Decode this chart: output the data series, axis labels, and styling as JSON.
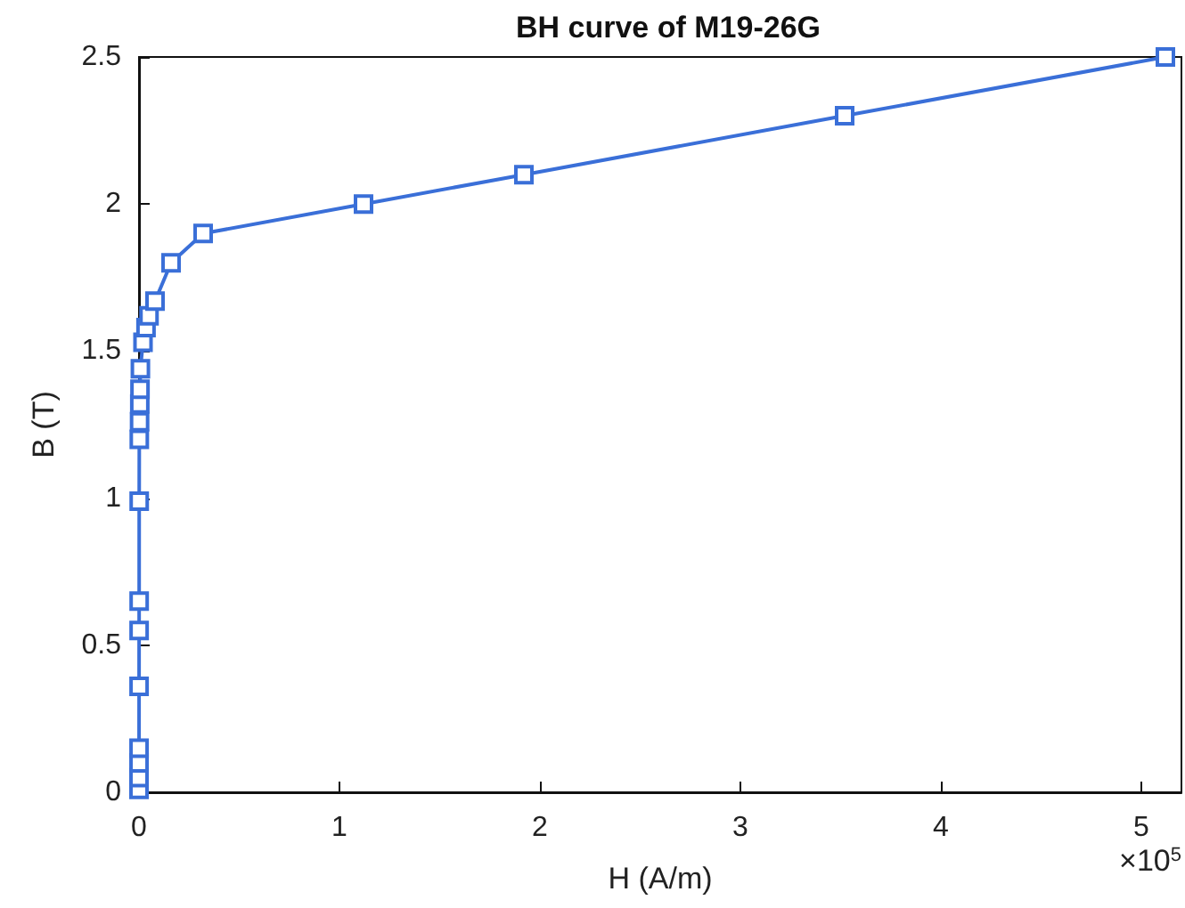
{
  "chart_data": {
    "type": "line",
    "title": "BH curve of M19-26G",
    "xlabel": "H (A/m)",
    "ylabel": "B (T)",
    "annotations": [
      "×10$^{5}$"
    ],
    "x": [
      0,
      0.0001,
      0.0002,
      0.0003,
      0.0004,
      0.0006,
      0.0008,
      0.001,
      0.0015,
      0.003,
      0.004,
      0.005,
      0.007,
      0.02,
      0.035,
      0.05,
      0.08,
      0.16,
      0.32,
      1.12,
      1.92,
      3.52,
      5.12
    ],
    "series": [
      {
        "color": "#3a6fd8",
        "values": [
          0.01,
          0.05,
          0.1,
          0.15,
          0.36,
          0.55,
          0.65,
          0.99,
          1.2,
          1.26,
          1.32,
          1.37,
          1.44,
          1.53,
          1.58,
          1.62,
          1.67,
          1.8,
          1.9,
          2.0,
          2.1,
          2.3,
          2.5
        ]
      }
    ],
    "xlim": [
      0,
      5.2
    ],
    "xticks": [
      0,
      1,
      2,
      3,
      4,
      5
    ],
    "ylim": [
      0,
      2.5
    ],
    "yticks": [
      0,
      0.5,
      1,
      1.5,
      2,
      2.5
    ],
    "grid": false,
    "marker": "square",
    "line_style": "solid"
  }
}
